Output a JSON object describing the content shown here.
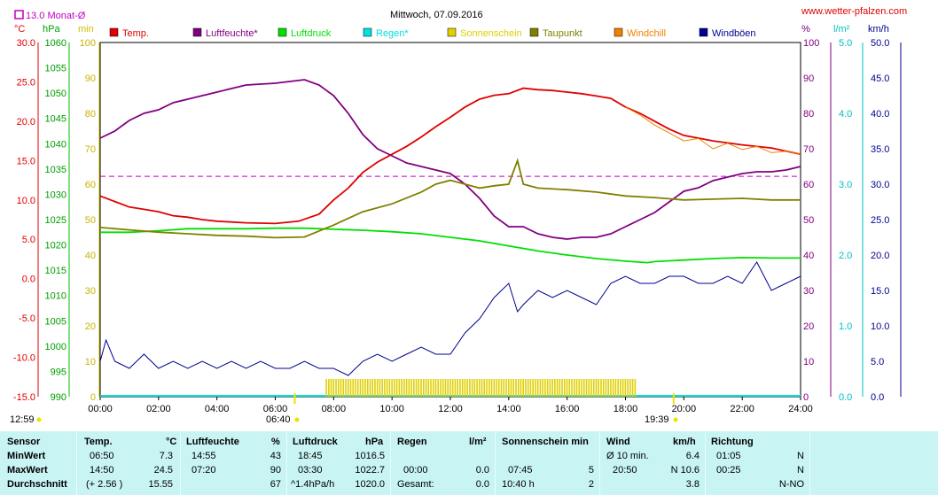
{
  "header": {
    "title": "Mittwoch, 07.09.2016",
    "website": "www.wetter-pfalzen.com",
    "monthly_avg_label": "13.0 Monat-Ø"
  },
  "axis_units": {
    "temp": "°C",
    "pressure": "hPa",
    "minutes": "min",
    "humidity": "%",
    "rain": "l/m²",
    "wind": "km/h"
  },
  "legend": [
    {
      "label": "Temp.",
      "color": "#e00000"
    },
    {
      "label": "Luftfeuchte*",
      "color": "#800080"
    },
    {
      "label": "Luftdruck",
      "color": "#00e000"
    },
    {
      "label": "Regen*",
      "color": "#00e0e0"
    },
    {
      "label": "Sonnenschein",
      "color": "#e0d000"
    },
    {
      "label": "Taupunkt",
      "color": "#808000"
    },
    {
      "label": "Windchill",
      "color": "#f08000"
    },
    {
      "label": "Windböen",
      "color": "#000090"
    }
  ],
  "time_markers": {
    "sunrise": "06:40",
    "sunset": "19:39",
    "daylength": "12:59"
  },
  "chart_data": {
    "type": "line",
    "title": "Mittwoch, 07.09.2016",
    "x_ticks": [
      "00:00",
      "02:00",
      "04:00",
      "06:00",
      "08:00",
      "10:00",
      "12:00",
      "14:00",
      "16:00",
      "18:00",
      "20:00",
      "22:00",
      "24:00"
    ],
    "xlim": [
      0,
      24
    ],
    "axes": {
      "temp": {
        "unit": "°C",
        "range": [
          -15,
          30
        ],
        "ticks": [
          "30.0",
          "25.0",
          "20.0",
          "15.0",
          "10.0",
          "5.0",
          "0.0",
          "-5.0",
          "-10.0",
          "-15.0"
        ]
      },
      "pressure": {
        "unit": "hPa",
        "range": [
          990,
          1060
        ],
        "ticks": [
          "1060",
          "1055",
          "1050",
          "1045",
          "1040",
          "1035",
          "1030",
          "1025",
          "1020",
          "1015",
          "1010",
          "1005",
          "1000",
          "995",
          "990"
        ]
      },
      "minutes": {
        "unit": "min",
        "range": [
          0,
          100
        ],
        "ticks": [
          "100",
          "90",
          "80",
          "70",
          "60",
          "50",
          "40",
          "30",
          "20",
          "10",
          "0"
        ]
      },
      "humidity": {
        "unit": "%",
        "range": [
          0,
          100
        ],
        "ticks": [
          "100",
          "90",
          "80",
          "70",
          "60",
          "50",
          "40",
          "30",
          "20",
          "10",
          "0"
        ]
      },
      "rain": {
        "unit": "l/m²",
        "range": [
          0,
          5
        ],
        "ticks": [
          "5.0",
          "4.0",
          "3.0",
          "2.0",
          "1.0",
          "0.0"
        ]
      },
      "wind": {
        "unit": "km/h",
        "range": [
          0,
          50
        ],
        "ticks": [
          "50.0",
          "45.0",
          "40.0",
          "35.0",
          "30.0",
          "25.0",
          "20.0",
          "15.0",
          "10.0",
          "5.0",
          "0.0"
        ]
      }
    },
    "reference_line": {
      "label": "13.0 Monat-Ø",
      "axis": "temp",
      "value": 13.0
    },
    "series": [
      {
        "name": "Temp.",
        "axis": "temp",
        "color": "#e00000",
        "points": [
          [
            0,
            10.5
          ],
          [
            0.5,
            9.8
          ],
          [
            1,
            9.1
          ],
          [
            1.5,
            8.8
          ],
          [
            2,
            8.5
          ],
          [
            2.5,
            8.0
          ],
          [
            3,
            7.8
          ],
          [
            3.5,
            7.5
          ],
          [
            4,
            7.3
          ],
          [
            5,
            7.1
          ],
          [
            6,
            7.0
          ],
          [
            6.8,
            7.3
          ],
          [
            7.5,
            8.2
          ],
          [
            8,
            10
          ],
          [
            8.5,
            11.5
          ],
          [
            9,
            13.5
          ],
          [
            9.5,
            14.8
          ],
          [
            10,
            15.8
          ],
          [
            10.5,
            16.8
          ],
          [
            11,
            18
          ],
          [
            11.5,
            19.3
          ],
          [
            12,
            20.5
          ],
          [
            12.5,
            21.8
          ],
          [
            13,
            22.8
          ],
          [
            13.5,
            23.3
          ],
          [
            14,
            23.5
          ],
          [
            14.5,
            24.2
          ],
          [
            15,
            24.0
          ],
          [
            15.5,
            23.9
          ],
          [
            16,
            23.7
          ],
          [
            16.5,
            23.5
          ],
          [
            17,
            23.2
          ],
          [
            17.5,
            22.9
          ],
          [
            18,
            21.8
          ],
          [
            18.5,
            21.0
          ],
          [
            19,
            20.0
          ],
          [
            19.5,
            19.0
          ],
          [
            20,
            18.2
          ],
          [
            21,
            17.5
          ],
          [
            22,
            17.0
          ],
          [
            23,
            16.6
          ],
          [
            24,
            15.8
          ]
        ]
      },
      {
        "name": "Luftfeuchte*",
        "axis": "humidity",
        "color": "#800080",
        "points": [
          [
            0,
            73
          ],
          [
            0.5,
            75
          ],
          [
            1,
            78
          ],
          [
            1.5,
            80
          ],
          [
            2,
            81
          ],
          [
            2.5,
            83
          ],
          [
            3,
            84
          ],
          [
            3.5,
            85
          ],
          [
            4,
            86
          ],
          [
            5,
            88
          ],
          [
            6,
            88.5
          ],
          [
            6.5,
            89
          ],
          [
            7,
            89.5
          ],
          [
            7.5,
            88
          ],
          [
            8,
            85
          ],
          [
            8.5,
            80
          ],
          [
            9,
            74
          ],
          [
            9.5,
            70
          ],
          [
            10,
            68
          ],
          [
            10.5,
            66
          ],
          [
            11,
            65
          ],
          [
            11.5,
            64
          ],
          [
            12,
            63
          ],
          [
            12.5,
            60
          ],
          [
            13,
            56
          ],
          [
            13.5,
            51
          ],
          [
            14,
            48
          ],
          [
            14.5,
            48
          ],
          [
            15,
            46
          ],
          [
            15.5,
            45
          ],
          [
            16,
            44.5
          ],
          [
            16.5,
            45
          ],
          [
            17,
            45
          ],
          [
            17.5,
            46
          ],
          [
            18,
            48
          ],
          [
            18.5,
            50
          ],
          [
            19,
            52
          ],
          [
            19.5,
            55
          ],
          [
            20,
            58
          ],
          [
            20.5,
            59
          ],
          [
            21,
            61
          ],
          [
            21.5,
            62
          ],
          [
            22,
            63
          ],
          [
            22.5,
            63.5
          ],
          [
            23,
            63.5
          ],
          [
            23.5,
            64
          ],
          [
            24,
            65
          ]
        ]
      },
      {
        "name": "Luftdruck",
        "axis": "pressure",
        "color": "#00e000",
        "points": [
          [
            0,
            1022.5
          ],
          [
            1,
            1022.5
          ],
          [
            2,
            1022.8
          ],
          [
            3,
            1023.2
          ],
          [
            4,
            1023.2
          ],
          [
            5,
            1023.2
          ],
          [
            6,
            1023.3
          ],
          [
            7,
            1023.3
          ],
          [
            8,
            1023.1
          ],
          [
            9,
            1022.9
          ],
          [
            10,
            1022.6
          ],
          [
            11,
            1022.2
          ],
          [
            12,
            1021.5
          ],
          [
            13,
            1020.8
          ],
          [
            14,
            1019.8
          ],
          [
            15,
            1018.8
          ],
          [
            16,
            1018.0
          ],
          [
            17,
            1017.3
          ],
          [
            18,
            1016.8
          ],
          [
            18.75,
            1016.5
          ],
          [
            19,
            1016.7
          ],
          [
            20,
            1017.0
          ],
          [
            21,
            1017.3
          ],
          [
            22,
            1017.5
          ],
          [
            23,
            1017.4
          ],
          [
            24,
            1017.4
          ]
        ]
      },
      {
        "name": "Taupunkt",
        "axis": "temp",
        "color": "#808000",
        "points": [
          [
            0,
            6.5
          ],
          [
            1,
            6.2
          ],
          [
            2,
            5.9
          ],
          [
            3,
            5.7
          ],
          [
            4,
            5.5
          ],
          [
            5,
            5.4
          ],
          [
            6,
            5.2
          ],
          [
            7,
            5.3
          ],
          [
            8,
            6.8
          ],
          [
            9,
            8.5
          ],
          [
            10,
            9.5
          ],
          [
            11,
            11.0
          ],
          [
            11.5,
            12.0
          ],
          [
            12,
            12.5
          ],
          [
            12.5,
            12.0
          ],
          [
            13,
            11.5
          ],
          [
            13.5,
            11.8
          ],
          [
            14,
            12.0
          ],
          [
            14.3,
            15.0
          ],
          [
            14.5,
            12.0
          ],
          [
            15,
            11.5
          ],
          [
            16,
            11.3
          ],
          [
            17,
            11.0
          ],
          [
            18,
            10.5
          ],
          [
            19,
            10.3
          ],
          [
            20,
            10.0
          ],
          [
            21,
            10.1
          ],
          [
            22,
            10.2
          ],
          [
            23,
            10.0
          ],
          [
            24,
            10.0
          ]
        ]
      },
      {
        "name": "Windchill",
        "axis": "temp",
        "color": "#f08000",
        "points": [
          [
            18,
            21.8
          ],
          [
            18.5,
            20.8
          ],
          [
            19,
            19.5
          ],
          [
            19.5,
            18.5
          ],
          [
            20,
            17.5
          ],
          [
            20.5,
            17.8
          ],
          [
            21,
            16.5
          ],
          [
            21.5,
            17.2
          ],
          [
            22,
            16.4
          ],
          [
            22.5,
            16.8
          ],
          [
            23,
            16.0
          ],
          [
            23.5,
            16.2
          ],
          [
            24,
            15.8
          ]
        ]
      },
      {
        "name": "Windböen",
        "axis": "wind",
        "color": "#000090",
        "points": [
          [
            0,
            5
          ],
          [
            0.2,
            8
          ],
          [
            0.5,
            5
          ],
          [
            1,
            4
          ],
          [
            1.5,
            6
          ],
          [
            2,
            4
          ],
          [
            2.5,
            5
          ],
          [
            3,
            4
          ],
          [
            3.5,
            5
          ],
          [
            4,
            4
          ],
          [
            4.5,
            5
          ],
          [
            5,
            4
          ],
          [
            5.5,
            5
          ],
          [
            6,
            4
          ],
          [
            6.5,
            4
          ],
          [
            7,
            5
          ],
          [
            7.5,
            4
          ],
          [
            8,
            4
          ],
          [
            8.5,
            3
          ],
          [
            9,
            5
          ],
          [
            9.5,
            6
          ],
          [
            10,
            5
          ],
          [
            10.5,
            6
          ],
          [
            11,
            7
          ],
          [
            11.5,
            6
          ],
          [
            12,
            6
          ],
          [
            12.5,
            9
          ],
          [
            13,
            11
          ],
          [
            13.5,
            14
          ],
          [
            14,
            16
          ],
          [
            14.3,
            12
          ],
          [
            14.5,
            13
          ],
          [
            15,
            15
          ],
          [
            15.5,
            14
          ],
          [
            16,
            15
          ],
          [
            16.5,
            14
          ],
          [
            17,
            13
          ],
          [
            17.5,
            16
          ],
          [
            18,
            17
          ],
          [
            18.5,
            16
          ],
          [
            19,
            16
          ],
          [
            19.5,
            17
          ],
          [
            20,
            17
          ],
          [
            20.5,
            16
          ],
          [
            21,
            16
          ],
          [
            21.5,
            17
          ],
          [
            22,
            16
          ],
          [
            22.5,
            19
          ],
          [
            23,
            15
          ],
          [
            23.5,
            16
          ],
          [
            24,
            17
          ]
        ]
      }
    ],
    "sunshine_bars": {
      "name": "Sonnenschein",
      "axis": "minutes",
      "color": "#e0d000",
      "start": 7.75,
      "end": 18.35,
      "value": 5
    }
  },
  "table": {
    "headers": {
      "sensor": "Sensor",
      "temp": "Temp.",
      "temp_unit": "°C",
      "hum": "Luftfeuchte",
      "hum_unit": "%",
      "press": "Luftdruck",
      "press_unit": "hPa",
      "rain": "Regen",
      "rain_unit": "l/m²",
      "sun": "Sonnenschein min",
      "wind": "Wind",
      "wind_unit": "km/h",
      "dir": "Richtung"
    },
    "rows": [
      {
        "label": "MinWert",
        "temp_time": "06:50",
        "temp": "7.3",
        "hum_time": "14:55",
        "hum": "43",
        "press_time": "18:45",
        "press": "1016.5",
        "rain_time": "",
        "rain": "",
        "sun_time": "",
        "sun": "",
        "wind_label": "Ø 10 min.",
        "wind": "6.4",
        "dir_time": "01:05",
        "dir": "N"
      },
      {
        "label": "MaxWert",
        "temp_time": "14:50",
        "temp": "24.5",
        "hum_time": "07:20",
        "hum": "90",
        "press_time": "03:30",
        "press": "1022.7",
        "rain_time": "00:00",
        "rain": "0.0",
        "sun_time": "07:45",
        "sun": "5",
        "wind_label": "20:50",
        "wind": "N 10.6",
        "dir_time": "00:25",
        "dir": "N"
      },
      {
        "label": "Durchschnitt",
        "temp_time": "(+ 2.56 )",
        "temp": "15.55",
        "hum_time": "",
        "hum": "67",
        "press_time": "^1.4hPa/h",
        "press": "1020.0",
        "rain_time": "Gesamt:",
        "rain": "0.0",
        "sun_time": "10:40 h",
        "sun": "2",
        "wind_label": "",
        "wind": "3.8",
        "dir_time": "",
        "dir": "N-NO"
      }
    ]
  }
}
